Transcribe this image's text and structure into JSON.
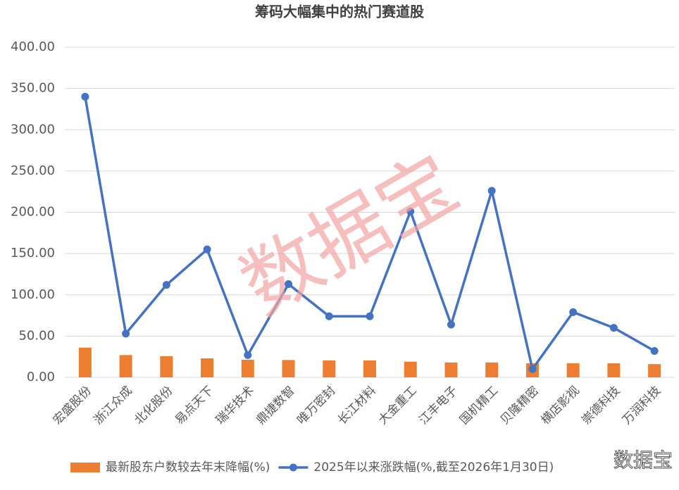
{
  "chart_data": {
    "type": "combo",
    "title": "筹码大幅集中的热门赛道股",
    "categories": [
      "宏盛股份",
      "浙江众成",
      "北化股份",
      "易点天下",
      "瑞华技术",
      "鼎捷数智",
      "唯万密封",
      "长江材料",
      "大金重工",
      "江丰电子",
      "国机精工",
      "贝隆精密",
      "横店影视",
      "崇德科技",
      "万润科技"
    ],
    "series": [
      {
        "name": "最新股东户数较去年末降幅(%)",
        "type": "bar",
        "color": "#ed7d31",
        "values": [
          36,
          27,
          25.6,
          23,
          21.3,
          21,
          20.5,
          20.5,
          19,
          18,
          18,
          17,
          17,
          17,
          16
        ]
      },
      {
        "name": "2025年以来涨跌幅(%,截至2026年1月30日)",
        "type": "line",
        "color": "#4472c4",
        "values": [
          340,
          53,
          112,
          155,
          27,
          113,
          74,
          74,
          201,
          64,
          226,
          10,
          79,
          60,
          32
        ]
      }
    ],
    "ylim": [
      0,
      400
    ],
    "yticks": [
      {
        "value": 0,
        "label": "0.00"
      },
      {
        "value": 50,
        "label": "50.00"
      },
      {
        "value": 100,
        "label": "100.00"
      },
      {
        "value": 150,
        "label": "150.00"
      },
      {
        "value": 200,
        "label": "200.00"
      },
      {
        "value": 250,
        "label": "250.00"
      },
      {
        "value": 300,
        "label": "300.00"
      },
      {
        "value": 350,
        "label": "350.00"
      },
      {
        "value": 400,
        "label": "400.00"
      }
    ],
    "grid": true,
    "legend": "bottom",
    "watermark": "数据宝"
  }
}
